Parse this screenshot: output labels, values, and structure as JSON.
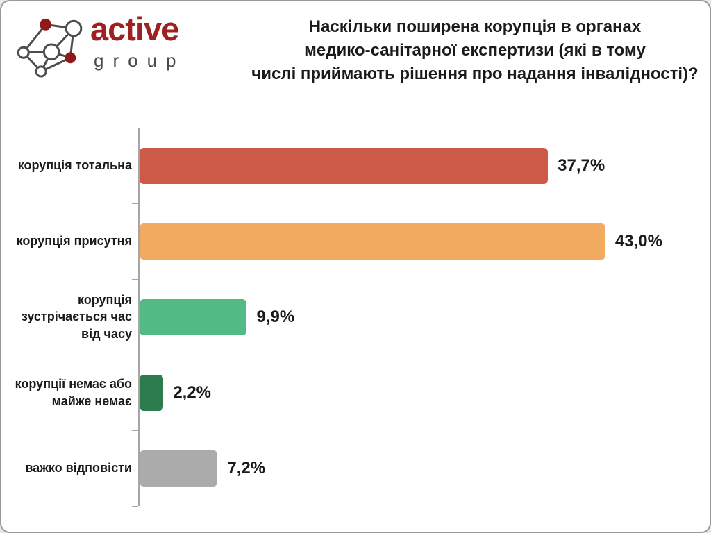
{
  "brand": {
    "name_primary": "active",
    "name_secondary": "group",
    "primary_color": "#9e2020",
    "secondary_color": "#4a4a4a",
    "node_fill_color": "#8f1a1a",
    "edge_color": "#4d4d4d"
  },
  "title": {
    "lines": [
      "Наскільки поширена корупція в органах",
      "медико-санітарної експертизи (які в тому",
      "числі приймають рішення про надання інвалідності)?"
    ]
  },
  "chart_data": {
    "type": "bar",
    "orientation": "horizontal",
    "title": "Наскільки поширена корупція в органах медико-санітарної експертизи (які в тому числі приймають рішення про надання інвалідності)?",
    "categories": [
      "корупція тотальна",
      "корупція присутня",
      "корупція зустрічається час від часу",
      "корупції немає або майже немає",
      "важко відповісти"
    ],
    "values": [
      37.7,
      43.0,
      9.9,
      2.2,
      7.2
    ],
    "value_labels": [
      "37,7%",
      "43,0%",
      "9,9%",
      "2,2%",
      "7,2%"
    ],
    "bar_colors": [
      "#cd5a46",
      "#f2a960",
      "#52ba85",
      "#2c7c4f",
      "#ababab"
    ],
    "xlim": [
      0,
      50.7
    ],
    "xlabel": "",
    "ylabel": "",
    "grid": false,
    "legend": false,
    "value_label_position": "right-of-bar"
  }
}
